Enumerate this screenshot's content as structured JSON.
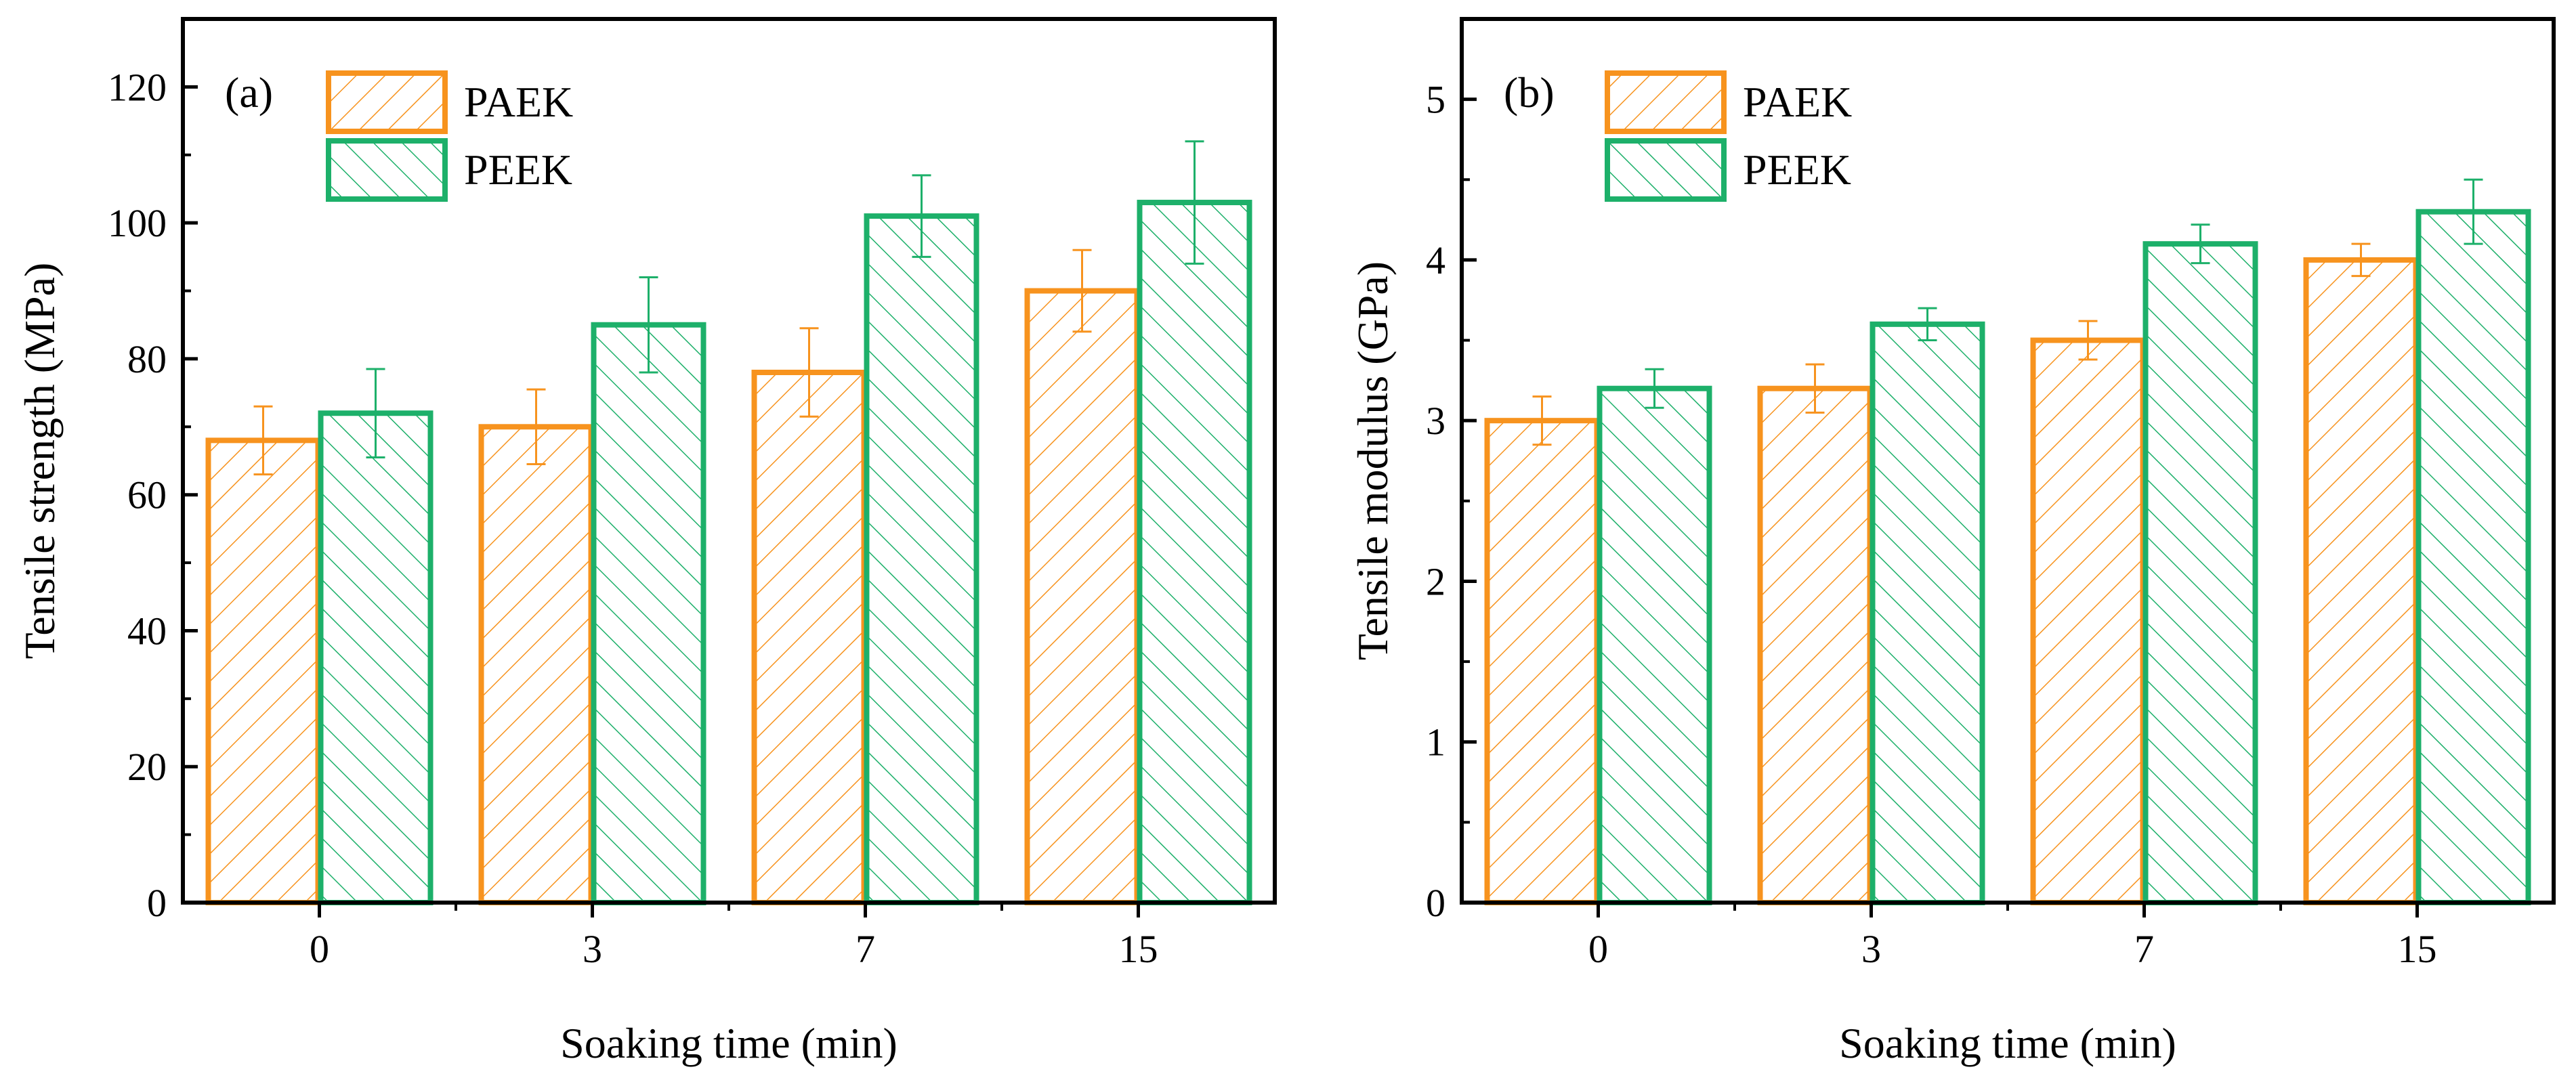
{
  "colors": {
    "paek": "#F7931E",
    "peek": "#1DB06A",
    "axis": "#000000"
  },
  "chart_data": [
    {
      "type": "bar",
      "panel_label": "(a)",
      "categories": [
        "0",
        "3",
        "7",
        "15"
      ],
      "xlabel": "Soaking time (min)",
      "ylabel": "Tensile strength (MPa)",
      "ylim": [
        0,
        130
      ],
      "yticks": [
        0,
        20,
        40,
        60,
        80,
        100,
        120
      ],
      "ytick_labels": [
        "0",
        "20",
        "40",
        "60",
        "80",
        "100",
        "120"
      ],
      "grid": false,
      "legend_position": "top-left",
      "series": [
        {
          "name": "PAEK",
          "values": [
            68,
            70,
            78,
            90
          ],
          "errors": [
            5,
            5.5,
            6.5,
            6
          ],
          "color": "#F7931E",
          "hatch": "forward"
        },
        {
          "name": "PEEK",
          "values": [
            72,
            85,
            101,
            103
          ],
          "errors": [
            6.5,
            7,
            6,
            9
          ],
          "color": "#1DB06A",
          "hatch": "backward"
        }
      ]
    },
    {
      "type": "bar",
      "panel_label": "(b)",
      "categories": [
        "0",
        "3",
        "7",
        "15"
      ],
      "xlabel": "Soaking time (min)",
      "ylabel": "Tensile modulus (GPa)",
      "ylim": [
        0,
        5.5
      ],
      "yticks": [
        0,
        1,
        2,
        3,
        4,
        5
      ],
      "ytick_labels": [
        "0",
        "1",
        "2",
        "3",
        "4",
        "5"
      ],
      "grid": false,
      "legend_position": "top-left",
      "series": [
        {
          "name": "PAEK",
          "values": [
            3.0,
            3.2,
            3.5,
            4.0
          ],
          "errors": [
            0.15,
            0.15,
            0.12,
            0.1
          ],
          "color": "#F7931E",
          "hatch": "forward"
        },
        {
          "name": "PEEK",
          "values": [
            3.2,
            3.6,
            4.1,
            4.3
          ],
          "errors": [
            0.12,
            0.1,
            0.12,
            0.2
          ],
          "color": "#1DB06A",
          "hatch": "backward"
        }
      ]
    }
  ]
}
